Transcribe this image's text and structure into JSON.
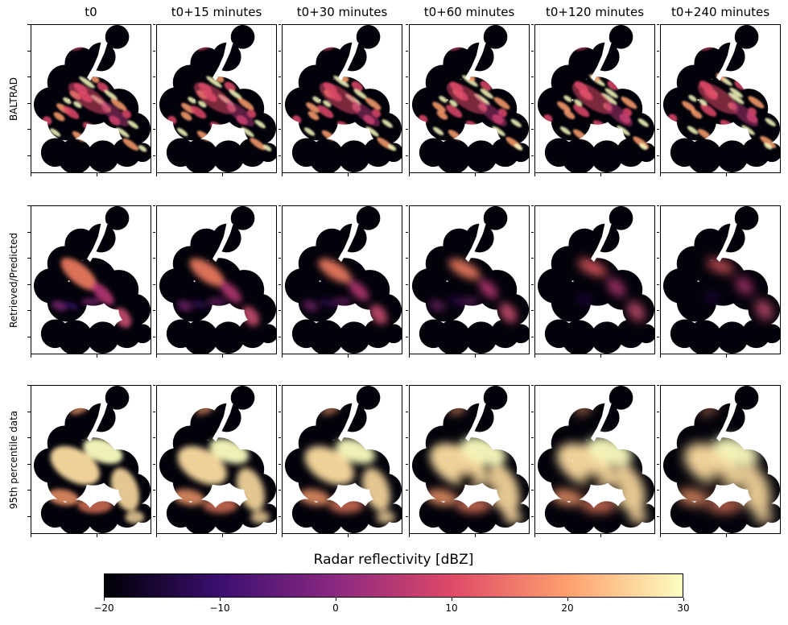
{
  "columns": [
    "t0",
    "t0+15 minutes",
    "t0+30 minutes",
    "t0+60 minutes",
    "t0+120 minutes",
    "t0+240 minutes"
  ],
  "rows": [
    "BALTRAD",
    "Retrieved/Predicted",
    "95th percentile data"
  ],
  "colorbar": {
    "title": "Radar reflectivity [dBZ]",
    "min": -20,
    "max": 30,
    "ticks": [
      "−20",
      "−10",
      "0",
      "10",
      "20",
      "30"
    ],
    "colormap": "magma",
    "colors": [
      "#000004",
      "#3b0f70",
      "#8c2981",
      "#de4968",
      "#fe9f6d",
      "#fcfdbf"
    ]
  },
  "chart_data": {
    "type": "heatmap",
    "title": "",
    "xlabel": "",
    "ylabel": "",
    "quantity": "Radar reflectivity [dBZ]",
    "value_range": [
      -20,
      30
    ],
    "panels_grid": {
      "rows": 3,
      "columns": 6
    },
    "row_labels": [
      "BALTRAD",
      "Retrieved/Predicted",
      "95th percentile data"
    ],
    "column_labels": [
      "t0",
      "t0+15 minutes",
      "t0+30 minutes",
      "t0+60 minutes",
      "t0+120 minutes",
      "t0+240 minutes"
    ],
    "colorbar_ticks": [
      -20,
      -10,
      0,
      10,
      20,
      30
    ],
    "axis_tick_labels": "none"
  }
}
